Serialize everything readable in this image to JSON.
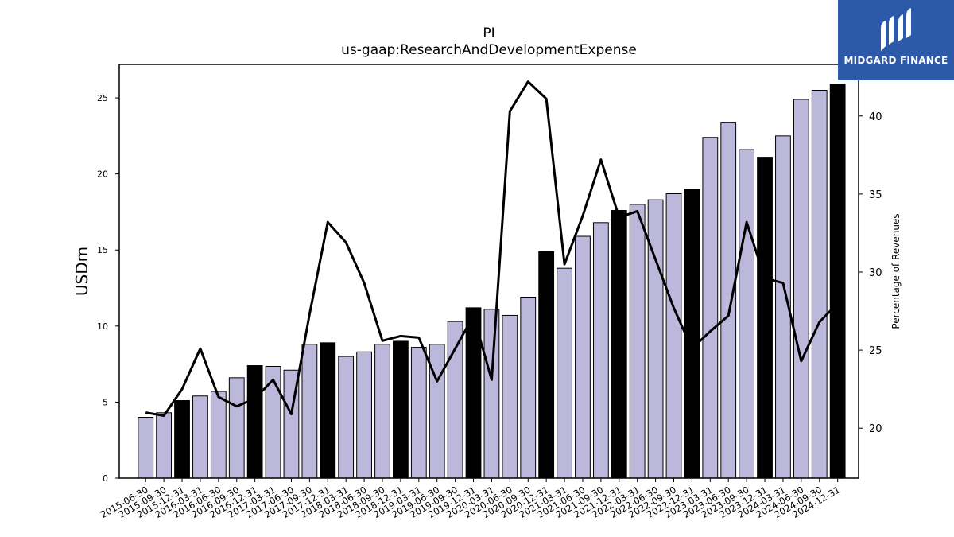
{
  "chart_data": {
    "type": "bar",
    "title": "PI",
    "subtitle": "us-gaap:ResearchAndDevelopmentExpense",
    "ylabel": "USDm",
    "y2label": "Percentage of Revenues",
    "ylim": [
      0,
      27.2
    ],
    "y2lim": [
      16.8,
      43.3
    ],
    "yticks": [
      0,
      5,
      10,
      15,
      20,
      25
    ],
    "y2ticks": [
      20,
      25,
      30,
      35,
      40
    ],
    "grid": false,
    "colors": {
      "bar": "#bcb8db",
      "bar_highlight": "#000000",
      "line": "#000000"
    },
    "categories": [
      "2015-06-30",
      "2015-09-30",
      "2015-12-31",
      "2016-03-31",
      "2016-06-30",
      "2016-09-30",
      "2016-12-31",
      "2017-03-31",
      "2017-06-30",
      "2017-09-30",
      "2017-12-31",
      "2018-03-31",
      "2018-06-30",
      "2018-09-30",
      "2018-12-31",
      "2019-03-31",
      "2019-06-30",
      "2019-09-30",
      "2019-12-31",
      "2020-03-31",
      "2020-06-30",
      "2020-09-30",
      "2020-12-31",
      "2021-03-31",
      "2021-06-30",
      "2021-09-30",
      "2021-12-31",
      "2022-03-31",
      "2022-06-30",
      "2022-09-30",
      "2022-12-31",
      "2023-03-31",
      "2023-06-30",
      "2023-09-30",
      "2023-12-31",
      "2024-03-31",
      "2024-06-30",
      "2024-09-30",
      "2024-12-31"
    ],
    "series": [
      {
        "type": "bar",
        "values": [
          4.0,
          4.3,
          5.1,
          5.4,
          5.7,
          6.6,
          7.4,
          7.35,
          7.1,
          8.8,
          8.9,
          8.0,
          8.3,
          8.8,
          9.0,
          8.6,
          8.8,
          10.3,
          11.2,
          11.1,
          10.7,
          11.9,
          14.9,
          13.8,
          15.9,
          16.8,
          17.6,
          18.0,
          18.3,
          18.7,
          19.0,
          22.4,
          23.4,
          21.6,
          21.1,
          22.5,
          24.9,
          25.5,
          25.9
        ],
        "highlight": [
          2,
          6,
          10,
          14,
          18,
          22,
          26,
          30,
          34,
          38
        ]
      },
      {
        "type": "line",
        "axis": "right",
        "values": [
          21.0,
          20.8,
          22.5,
          25.1,
          22.0,
          21.4,
          21.9,
          23.1,
          20.9,
          27.3,
          33.2,
          31.9,
          29.3,
          25.6,
          25.9,
          25.8,
          23.0,
          25.1,
          27.2,
          23.1,
          40.3,
          42.2,
          41.1,
          30.5,
          33.6,
          37.2,
          33.5,
          33.9,
          30.8,
          27.7,
          25.1,
          26.2,
          27.2,
          33.2,
          29.6,
          29.3,
          24.3,
          26.8,
          28.0
        ]
      }
    ]
  },
  "logo": {
    "text": "MIDGARD FINANCE"
  }
}
